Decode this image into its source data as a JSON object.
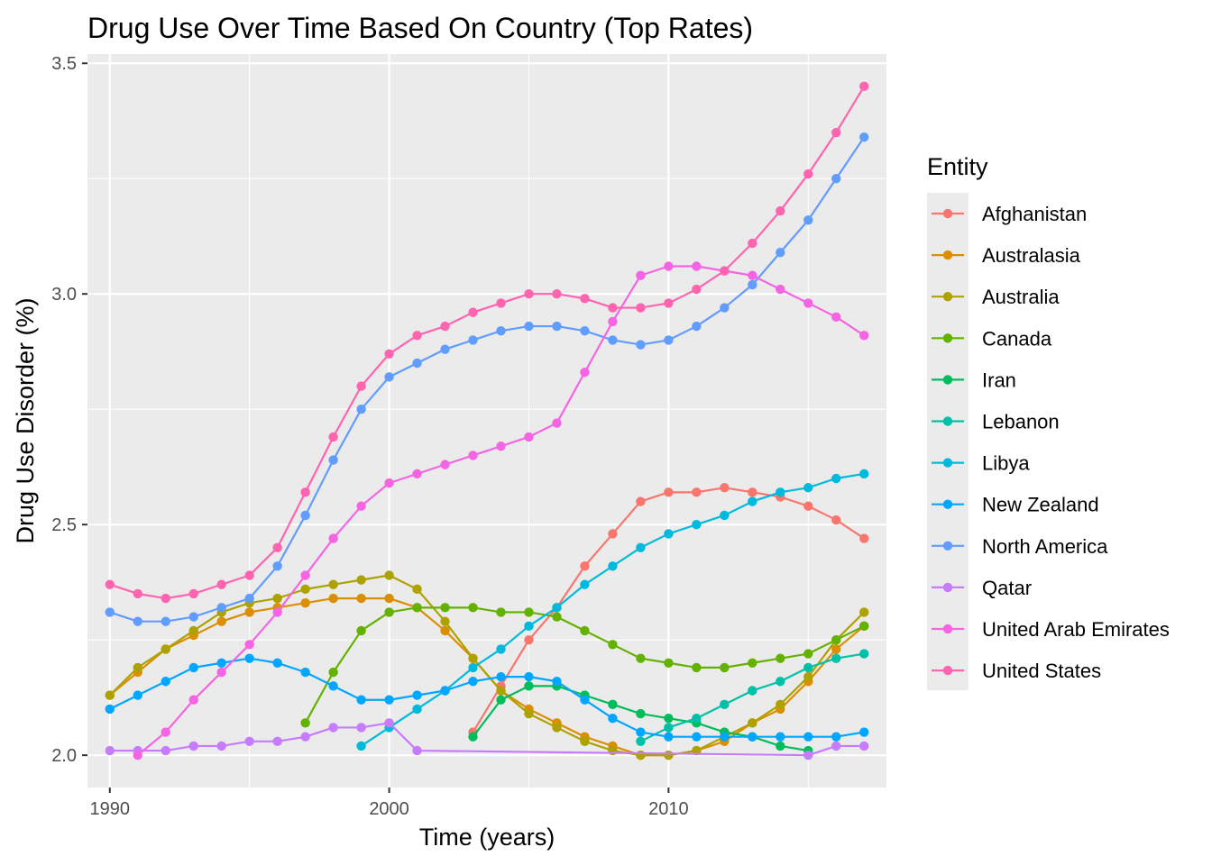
{
  "chart_data": {
    "type": "line",
    "title": "Drug Use Over Time Based On Country (Top Rates)",
    "xlabel": "Time (years)",
    "ylabel": "Drug Use Disorder (%)",
    "xlim": [
      1989.2,
      2017.8
    ],
    "ylim": [
      1.93,
      3.52
    ],
    "xticks": [
      1990,
      2000,
      2010
    ],
    "xtick_labels": [
      "1990",
      "2000",
      "2010"
    ],
    "yticks": [
      2.0,
      2.5,
      3.0,
      3.5
    ],
    "ytick_labels": [
      "2.0",
      "2.5",
      "3.0",
      "3.5"
    ],
    "grid": true,
    "markers": true,
    "legend": {
      "title": "Entity",
      "position": "right"
    },
    "series": [
      {
        "name": "Afghanistan",
        "color": "#F8766D",
        "x": [
          2003,
          2004,
          2005,
          2006,
          2007,
          2008,
          2009,
          2010,
          2011,
          2012,
          2013,
          2014,
          2015,
          2016,
          2017
        ],
        "y": [
          2.05,
          2.15,
          2.25,
          2.32,
          2.41,
          2.48,
          2.55,
          2.57,
          2.57,
          2.58,
          2.57,
          2.56,
          2.54,
          2.51,
          2.47
        ]
      },
      {
        "name": "Australasia",
        "color": "#DB8E00",
        "x": [
          1990,
          1991,
          1992,
          1993,
          1994,
          1995,
          1996,
          1997,
          1998,
          1999,
          2000,
          2001,
          2002,
          2003,
          2004,
          2005,
          2006,
          2007,
          2008,
          2009,
          2010,
          2011,
          2012,
          2013,
          2014,
          2015,
          2016,
          2017
        ],
        "y": [
          2.13,
          2.18,
          2.23,
          2.26,
          2.29,
          2.31,
          2.32,
          2.33,
          2.34,
          2.34,
          2.34,
          2.32,
          2.27,
          2.21,
          2.14,
          2.1,
          2.07,
          2.04,
          2.02,
          2.0,
          2.0,
          2.01,
          2.03,
          2.07,
          2.1,
          2.16,
          2.23,
          2.28
        ]
      },
      {
        "name": "Australia",
        "color": "#AEA200",
        "x": [
          1990,
          1991,
          1992,
          1993,
          1994,
          1995,
          1996,
          1997,
          1998,
          1999,
          2000,
          2001,
          2002,
          2003,
          2004,
          2005,
          2006,
          2007,
          2008,
          2009,
          2010,
          2011,
          2012,
          2013,
          2014,
          2015,
          2016,
          2017
        ],
        "y": [
          2.13,
          2.19,
          2.23,
          2.27,
          2.31,
          2.33,
          2.34,
          2.36,
          2.37,
          2.38,
          2.39,
          2.36,
          2.29,
          2.21,
          2.14,
          2.09,
          2.06,
          2.03,
          2.01,
          2.0,
          2.0,
          2.01,
          2.04,
          2.07,
          2.11,
          2.17,
          2.25,
          2.31
        ]
      },
      {
        "name": "Canada",
        "color": "#64B200",
        "x": [
          1997,
          1998,
          1999,
          2000,
          2001,
          2002,
          2003,
          2004,
          2005,
          2006,
          2007,
          2008,
          2009,
          2010,
          2011,
          2012,
          2013,
          2014,
          2015,
          2016,
          2017
        ],
        "y": [
          2.07,
          2.18,
          2.27,
          2.31,
          2.32,
          2.32,
          2.32,
          2.31,
          2.31,
          2.3,
          2.27,
          2.24,
          2.21,
          2.2,
          2.19,
          2.19,
          2.2,
          2.21,
          2.22,
          2.25,
          2.28
        ]
      },
      {
        "name": "Iran",
        "color": "#00BD5C",
        "x": [
          2003,
          2004,
          2005,
          2006,
          2007,
          2008,
          2009,
          2010,
          2011,
          2012,
          2013,
          2014,
          2015
        ],
        "y": [
          2.04,
          2.12,
          2.15,
          2.15,
          2.13,
          2.11,
          2.09,
          2.08,
          2.07,
          2.05,
          2.04,
          2.02,
          2.01
        ]
      },
      {
        "name": "Lebanon",
        "color": "#00C1A7",
        "x": [
          2009,
          2010,
          2011,
          2012,
          2013,
          2014,
          2015,
          2016,
          2017
        ],
        "y": [
          2.03,
          2.06,
          2.08,
          2.11,
          2.14,
          2.16,
          2.19,
          2.21,
          2.22
        ]
      },
      {
        "name": "Libya",
        "color": "#00BADE",
        "x": [
          1999,
          2000,
          2001,
          2002,
          2003,
          2004,
          2005,
          2006,
          2007,
          2008,
          2009,
          2010,
          2011,
          2012,
          2013,
          2014,
          2015,
          2016,
          2017
        ],
        "y": [
          2.02,
          2.06,
          2.1,
          2.14,
          2.19,
          2.23,
          2.28,
          2.32,
          2.37,
          2.41,
          2.45,
          2.48,
          2.5,
          2.52,
          2.55,
          2.57,
          2.58,
          2.6,
          2.61
        ]
      },
      {
        "name": "New Zealand",
        "color": "#00A6FF",
        "x": [
          1990,
          1991,
          1992,
          1993,
          1994,
          1995,
          1996,
          1997,
          1998,
          1999,
          2000,
          2001,
          2002,
          2003,
          2004,
          2005,
          2006,
          2007,
          2008,
          2009,
          2010,
          2011,
          2012,
          2013,
          2014,
          2015,
          2016,
          2017
        ],
        "y": [
          2.1,
          2.13,
          2.16,
          2.19,
          2.2,
          2.21,
          2.2,
          2.18,
          2.15,
          2.12,
          2.12,
          2.13,
          2.14,
          2.16,
          2.17,
          2.17,
          2.16,
          2.12,
          2.08,
          2.05,
          2.04,
          2.04,
          2.04,
          2.04,
          2.04,
          2.04,
          2.04,
          2.05
        ]
      },
      {
        "name": "North America",
        "color": "#619CFF",
        "x": [
          1990,
          1991,
          1992,
          1993,
          1994,
          1995,
          1996,
          1997,
          1998,
          1999,
          2000,
          2001,
          2002,
          2003,
          2004,
          2005,
          2006,
          2007,
          2008,
          2009,
          2010,
          2011,
          2012,
          2013,
          2014,
          2015,
          2016,
          2017
        ],
        "y": [
          2.31,
          2.29,
          2.29,
          2.3,
          2.32,
          2.34,
          2.41,
          2.52,
          2.64,
          2.75,
          2.82,
          2.85,
          2.88,
          2.9,
          2.92,
          2.93,
          2.93,
          2.92,
          2.9,
          2.89,
          2.9,
          2.93,
          2.97,
          3.02,
          3.09,
          3.16,
          3.25,
          3.34
        ]
      },
      {
        "name": "Qatar",
        "color": "#C77CFF",
        "x": [
          1990,
          1991,
          1992,
          1993,
          1994,
          1995,
          1996,
          1997,
          1998,
          1999,
          2000,
          2001,
          2015,
          2016,
          2017
        ],
        "y": [
          2.01,
          2.01,
          2.01,
          2.02,
          2.02,
          2.03,
          2.03,
          2.04,
          2.06,
          2.06,
          2.07,
          2.01,
          2.0,
          2.02,
          2.02
        ]
      },
      {
        "name": "United Arab Emirates",
        "color": "#F564E3",
        "x": [
          1991,
          1992,
          1993,
          1994,
          1995,
          1996,
          1997,
          1998,
          1999,
          2000,
          2001,
          2002,
          2003,
          2004,
          2005,
          2006,
          2007,
          2008,
          2009,
          2010,
          2011,
          2012,
          2013,
          2014,
          2015,
          2016,
          2017
        ],
        "y": [
          2.0,
          2.05,
          2.12,
          2.18,
          2.24,
          2.31,
          2.39,
          2.47,
          2.54,
          2.59,
          2.61,
          2.63,
          2.65,
          2.67,
          2.69,
          2.72,
          2.83,
          2.94,
          3.04,
          3.06,
          3.06,
          3.05,
          3.04,
          3.01,
          2.98,
          2.95,
          2.91
        ]
      },
      {
        "name": "United States",
        "color": "#FF64B0",
        "x": [
          1990,
          1991,
          1992,
          1993,
          1994,
          1995,
          1996,
          1997,
          1998,
          1999,
          2000,
          2001,
          2002,
          2003,
          2004,
          2005,
          2006,
          2007,
          2008,
          2009,
          2010,
          2011,
          2012,
          2013,
          2014,
          2015,
          2016,
          2017
        ],
        "y": [
          2.37,
          2.35,
          2.34,
          2.35,
          2.37,
          2.39,
          2.45,
          2.57,
          2.69,
          2.8,
          2.87,
          2.91,
          2.93,
          2.96,
          2.98,
          3.0,
          3.0,
          2.99,
          2.97,
          2.97,
          2.98,
          3.01,
          3.05,
          3.11,
          3.18,
          3.26,
          3.35,
          3.45
        ]
      }
    ]
  }
}
